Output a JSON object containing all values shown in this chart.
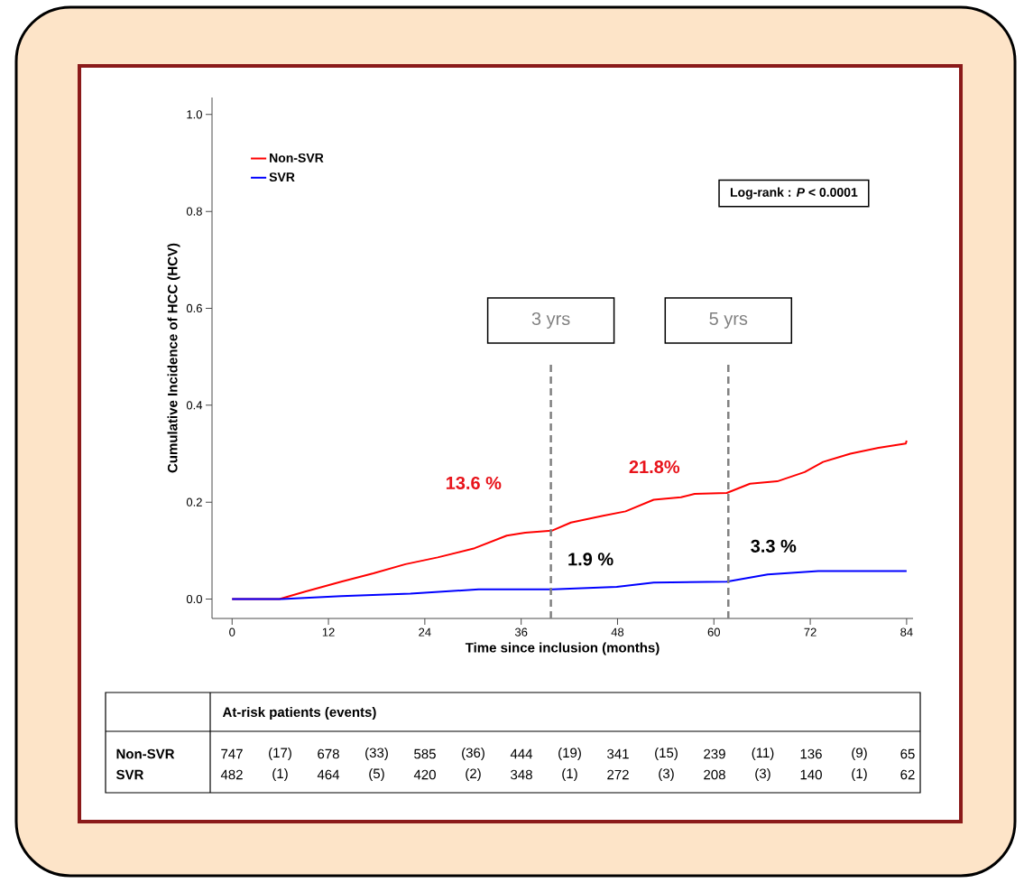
{
  "chart_data": {
    "type": "line",
    "xlabel": "Time since inclusion (months)",
    "ylabel": "Cumulative Incidence of HCC (HCV)",
    "xlim": [
      -2.5,
      84.8
    ],
    "ylim": [
      -0.04,
      1.035
    ],
    "xticks": [
      0,
      12,
      24,
      36,
      48,
      60,
      72,
      84
    ],
    "yticks": [
      {
        "value": 0,
        "label": "0.0"
      },
      {
        "value": 0.2,
        "label": "0.2"
      },
      {
        "value": 0.4,
        "label": "0.4"
      },
      {
        "value": 0.6,
        "label": "0.6"
      },
      {
        "value": 0.8,
        "label": "0.8"
      },
      {
        "value": 1.0,
        "label": "1.0"
      }
    ],
    "legend": "top left",
    "series": [
      {
        "name": "Non-SVR",
        "color": "#ff0000",
        "x": [
          0,
          5.9,
          9.0,
          13.6,
          17.6,
          21.6,
          25.6,
          30.2,
          34.2,
          36.5,
          39.8,
          42.2,
          46.2,
          49.0,
          52.5,
          55.9,
          57.6,
          61.6,
          64.5,
          67.9,
          71.3,
          73.6,
          77.0,
          80.5,
          83.9,
          84
        ],
        "values": [
          0,
          0,
          0.015,
          0.036,
          0.053,
          0.072,
          0.086,
          0.105,
          0.131,
          0.137,
          0.141,
          0.158,
          0.172,
          0.181,
          0.205,
          0.21,
          0.217,
          0.219,
          0.238,
          0.243,
          0.262,
          0.283,
          0.3,
          0.312,
          0.321,
          0.327
        ]
      },
      {
        "name": "SVR",
        "color": "#0000ff",
        "x": [
          0,
          6.2,
          13.6,
          22.2,
          30.7,
          39.9,
          47.9,
          52.5,
          61.6,
          66.7,
          73.0,
          84
        ],
        "values": [
          0,
          0,
          0.006,
          0.011,
          0.02,
          0.02,
          0.025,
          0.034,
          0.036,
          0.051,
          0.058,
          0.058
        ]
      }
    ],
    "ref_lines": [
      {
        "axis": "x",
        "value": 39.7,
        "label": "3 yrs",
        "color": "#808080",
        "line_style": "dashed"
      },
      {
        "axis": "x",
        "value": 61.8,
        "label": "5 yrs",
        "color": "#808080",
        "line_style": "dashed"
      }
    ],
    "annotations": [
      "Log-rank : *P* < 0.0001",
      "13.6 %",
      "21.8%",
      {
        "text": "1.9 %",
        "x": 39.7,
        "y": 0.019
      },
      {
        "text": "3.3 %",
        "x": 61.8,
        "y": 0.033
      },
      "At-risk patients (events)",
      "Non-SVR",
      "747",
      "(17)",
      "678",
      "(33)",
      "585",
      "(36)",
      "444",
      "(19)",
      "341",
      "(15)",
      "239",
      "(11)",
      "136",
      "(9)",
      "65",
      "SVR",
      "482",
      "(1)",
      "464",
      "(5)",
      "420",
      "(2)",
      "348",
      "(1)",
      "272",
      "(3)",
      "208",
      "(3)",
      "140",
      "(1)",
      "62"
    ]
  }
}
